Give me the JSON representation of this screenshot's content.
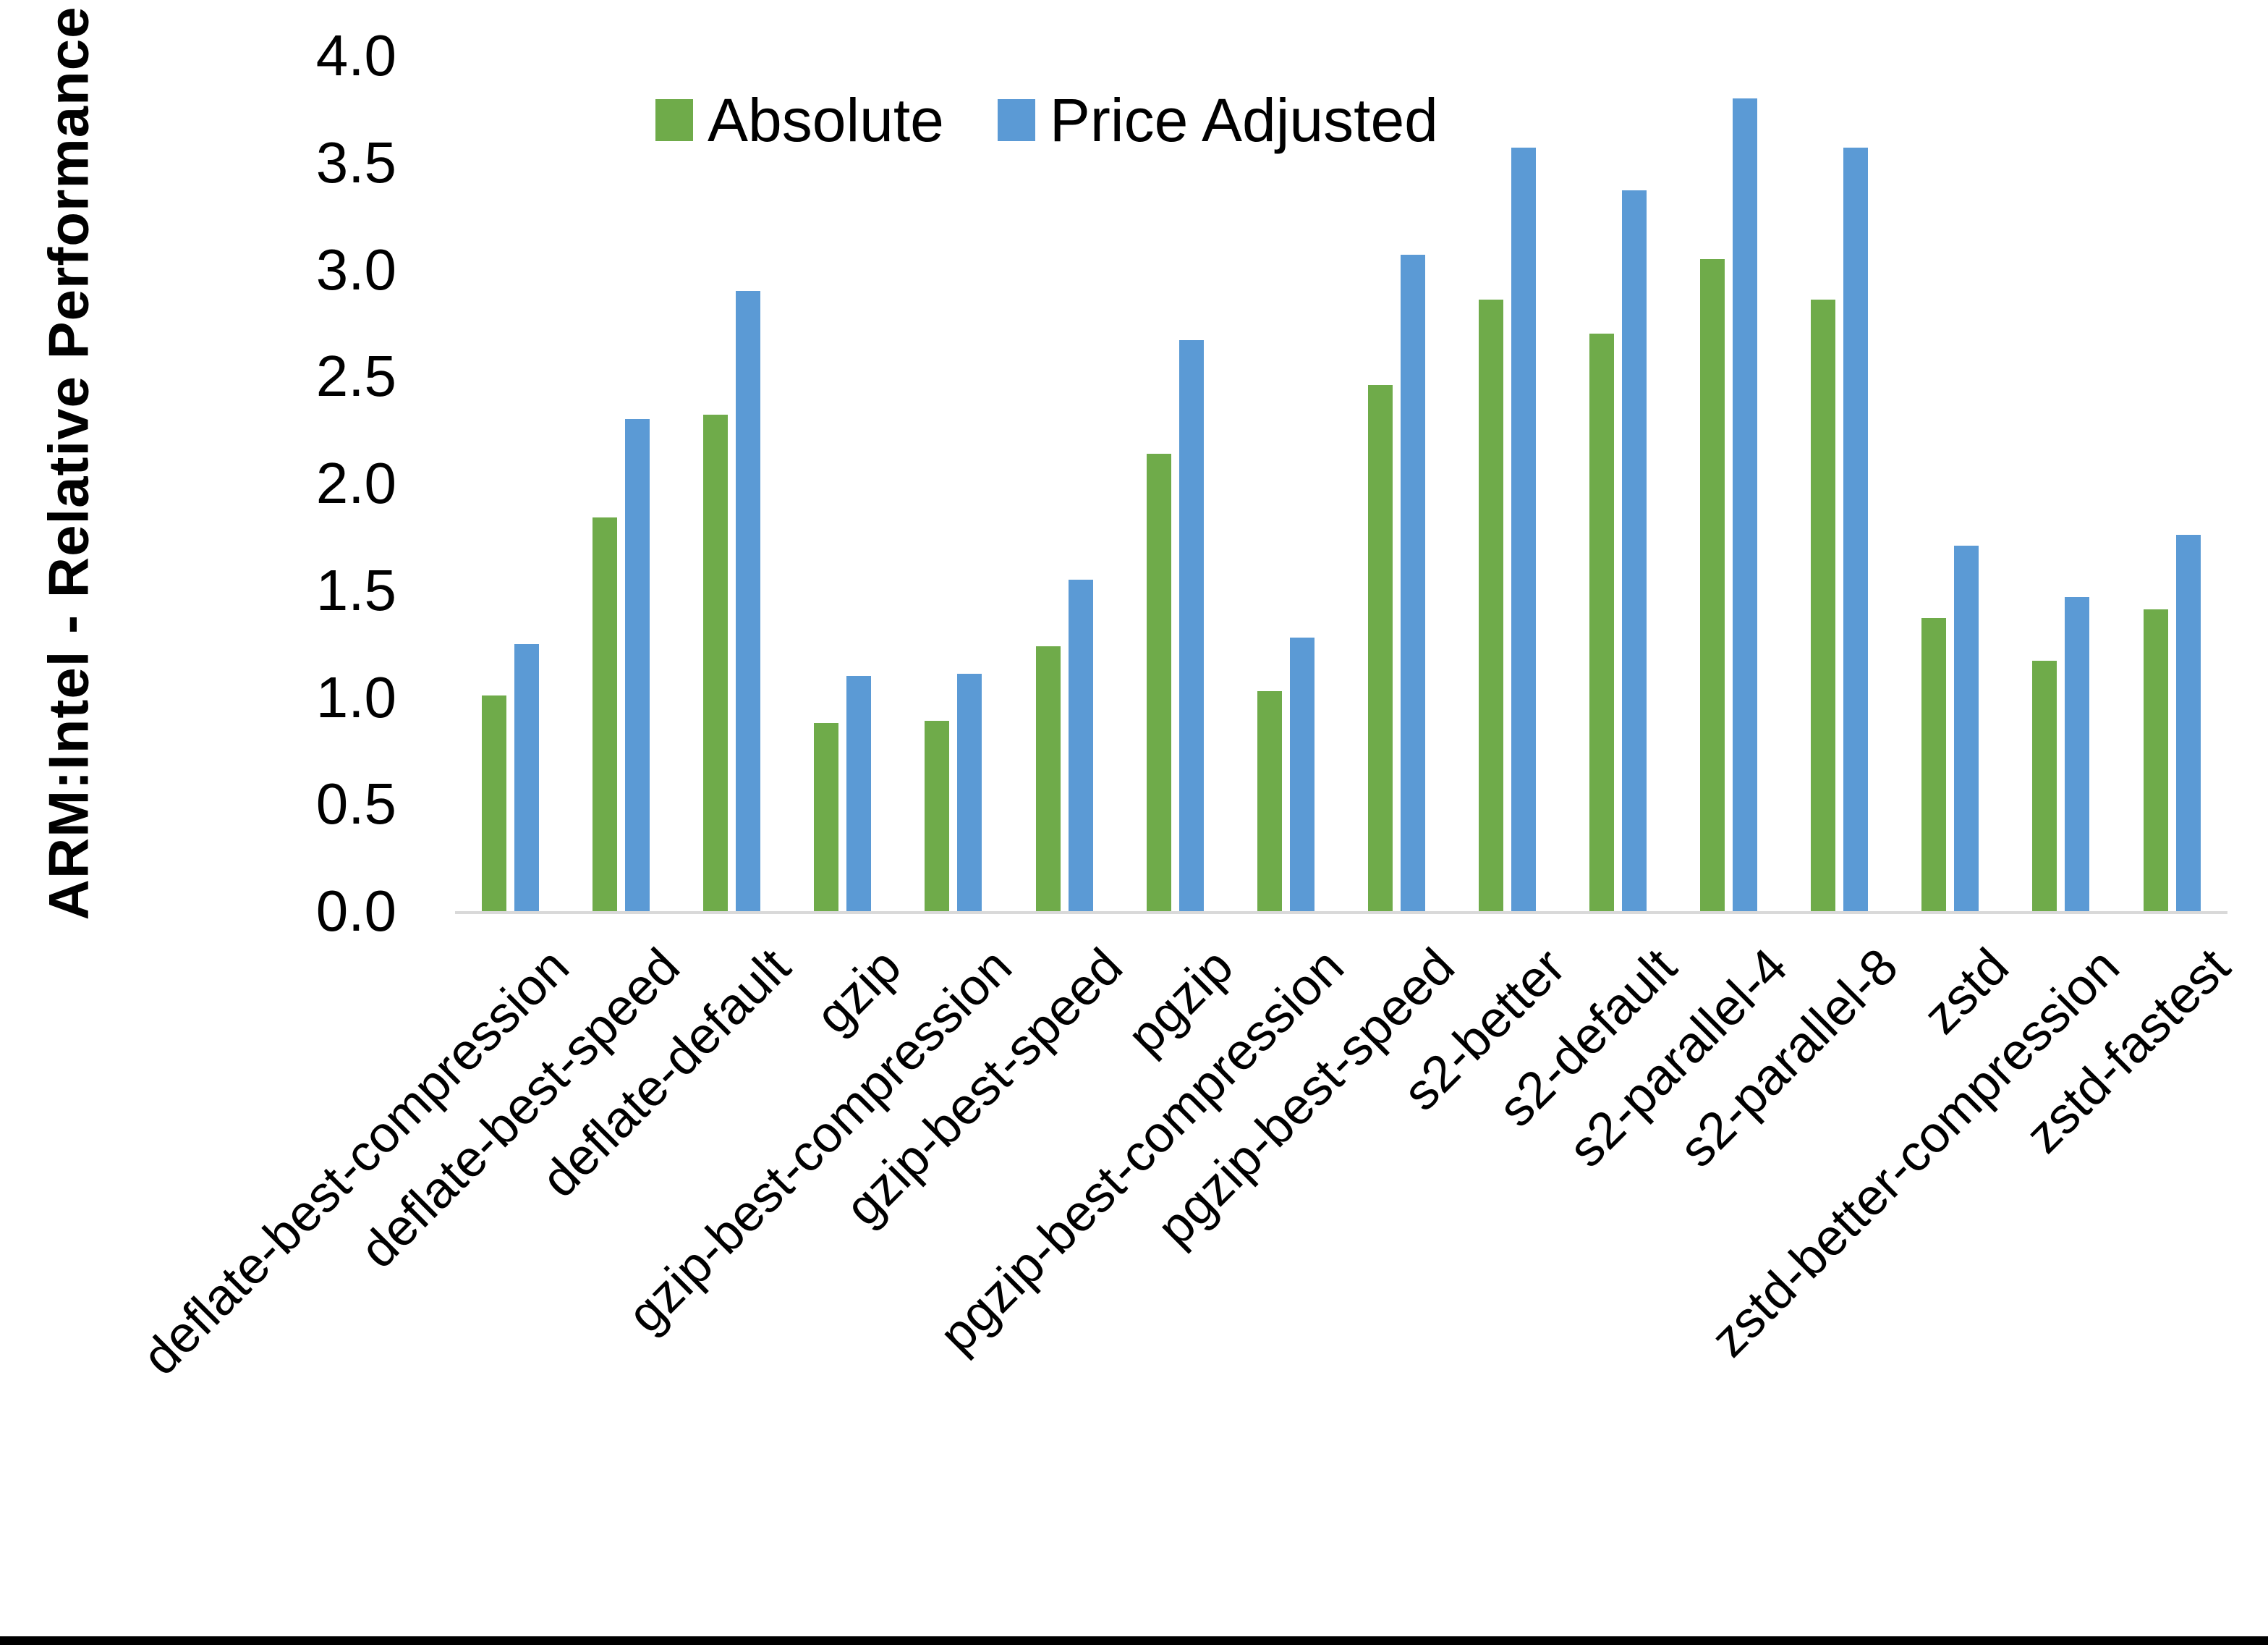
{
  "chart_data": {
    "type": "bar",
    "title": "",
    "xlabel": "",
    "ylabel": "ARM:Intel - Relative Performance",
    "ylim": [
      0.0,
      4.0
    ],
    "y_ticks": [
      "4.0",
      "3.5",
      "3.0",
      "2.5",
      "2.0",
      "1.5",
      "1.0",
      "0.5",
      "0.0"
    ],
    "grid": false,
    "legend_position": "top-center",
    "categories": [
      "deflate-best-compression",
      "deflate-best-speed",
      "deflate-default",
      "gzip",
      "gzip-best-compression",
      "gzip-best-speed",
      "pgzip",
      "pgzip-best-compression",
      "pgzip-best-speed",
      "s2-better",
      "s2-default",
      "s2-parallel-4",
      "s2-parallel-8",
      "zstd",
      "zstd-better-compression",
      "zstd-fastest"
    ],
    "series": [
      {
        "name": "Absolute",
        "color": "#6FAB4A",
        "values": [
          1.01,
          1.84,
          2.32,
          0.88,
          0.89,
          1.24,
          2.14,
          1.03,
          2.46,
          2.86,
          2.7,
          3.05,
          2.86,
          1.37,
          1.17,
          1.41
        ]
      },
      {
        "name": "Price Adjusted",
        "color": "#5B9AD5",
        "values": [
          1.25,
          2.3,
          2.9,
          1.1,
          1.11,
          1.55,
          2.67,
          1.28,
          3.07,
          3.57,
          3.37,
          3.8,
          3.57,
          1.71,
          1.47,
          1.76
        ]
      }
    ]
  },
  "colors": {
    "axis_line": "#D9D9D9",
    "text": "#000000",
    "background": "#FFFFFF",
    "footer_bar": "#000000"
  }
}
